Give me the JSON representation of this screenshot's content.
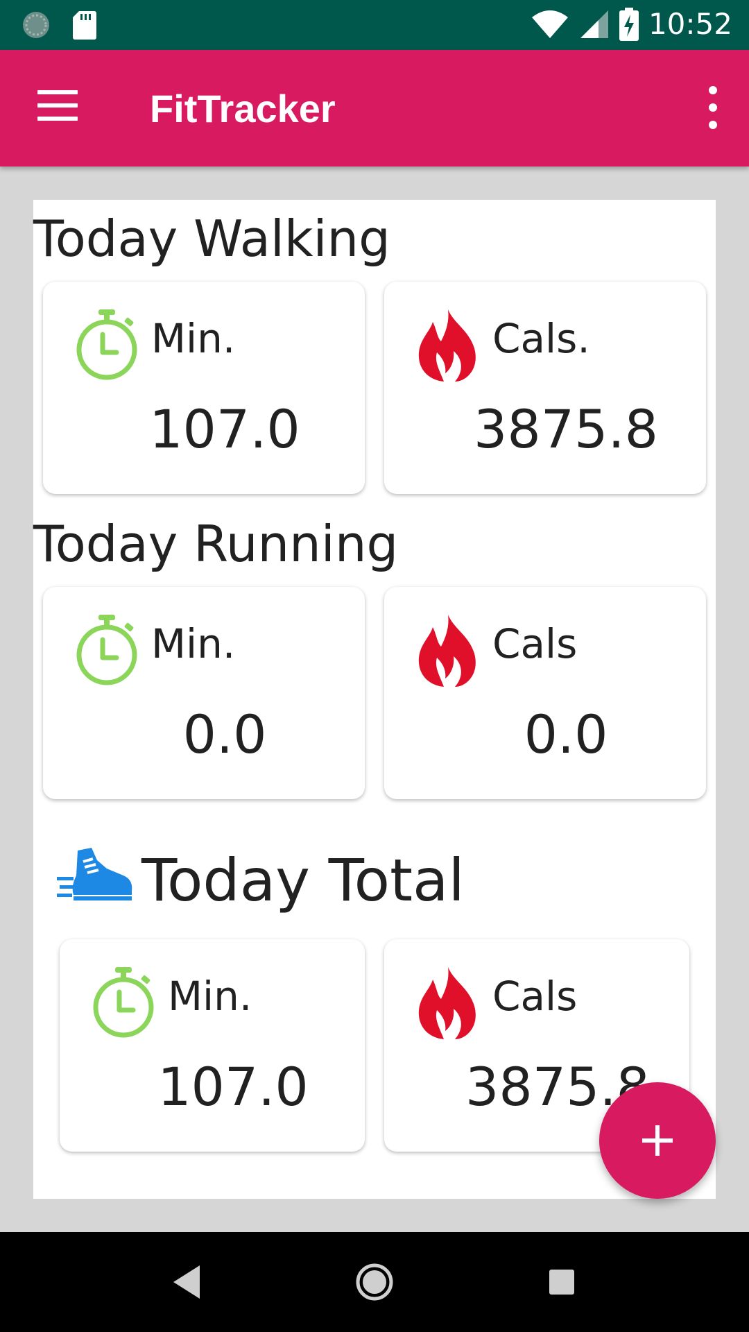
{
  "status_bar": {
    "time": "10:52",
    "icons": [
      "sync-icon",
      "sd-card-icon",
      "wifi-icon",
      "signal-icon",
      "battery-charging-icon"
    ]
  },
  "app_bar": {
    "title": "FitTracker",
    "menu_icon": "hamburger-menu-icon",
    "overflow_icon": "more-vertical-icon"
  },
  "walking": {
    "title": "Today Walking",
    "minutes_label": "Min.",
    "minutes_value": "107.0",
    "cals_label": "Cals.",
    "cals_value": "3875.8"
  },
  "running": {
    "title": "Today Running",
    "minutes_label": "Min.",
    "minutes_value": "0.0",
    "cals_label": "Cals",
    "cals_value": "0.0"
  },
  "total": {
    "title": "Today Total",
    "minutes_label": "Min.",
    "minutes_value": "107.0",
    "cals_label": "Cals",
    "cals_value": "3875.8"
  },
  "colors": {
    "primary": "#d81b60",
    "status_bar": "#00574b",
    "timer_icon": "#8bd65a",
    "flame_icon": "#e0102a",
    "shoe_icon": "#1e88e5"
  },
  "fab": {
    "icon": "plus-icon"
  },
  "nav_bar": {
    "icons": [
      "back-icon",
      "home-icon",
      "recents-icon"
    ]
  }
}
